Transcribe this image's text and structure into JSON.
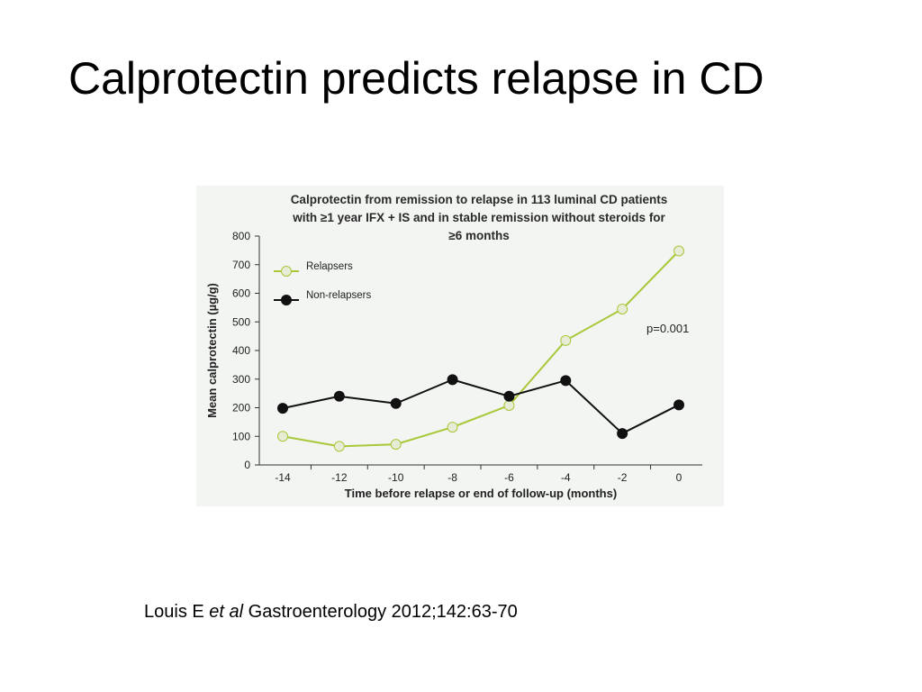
{
  "slide": {
    "title": "Calprotectin predicts relapse in CD"
  },
  "citation": {
    "author": "Louis E",
    "etal": "et al",
    "source": "Gastroenterology 2012;142:63-70"
  },
  "chart_data": {
    "type": "line",
    "title_lines": [
      "Calprotectin from remission to relapse in 113 luminal CD patients",
      "with ≥1 year IFX + IS and in stable remission without steroids for",
      "≥6 months"
    ],
    "xlabel": "Time before relapse or end of follow-up (months)",
    "ylabel": "Mean calprotectin (µg/g)",
    "x": [
      -14,
      -12,
      -10,
      -8,
      -6,
      -4,
      -2,
      0
    ],
    "xlim": [
      -14,
      0
    ],
    "ylim": [
      0,
      800
    ],
    "yticks": [
      0,
      100,
      200,
      300,
      400,
      500,
      600,
      700,
      800
    ],
    "xticks": [
      -14,
      -12,
      -10,
      -8,
      -6,
      -4,
      -2,
      0
    ],
    "series": [
      {
        "name": "Relapsers",
        "color": "#a8c83a",
        "marker_fill": "#e6ecd6",
        "values": [
          100,
          65,
          72,
          132,
          208,
          435,
          545,
          748
        ]
      },
      {
        "name": "Non-relapsers",
        "color": "#111111",
        "marker_fill": "#111111",
        "values": [
          198,
          240,
          215,
          298,
          240,
          295,
          110,
          210
        ]
      }
    ],
    "legend_position": "top-left",
    "annotation": "p=0.001",
    "grid": false
  }
}
